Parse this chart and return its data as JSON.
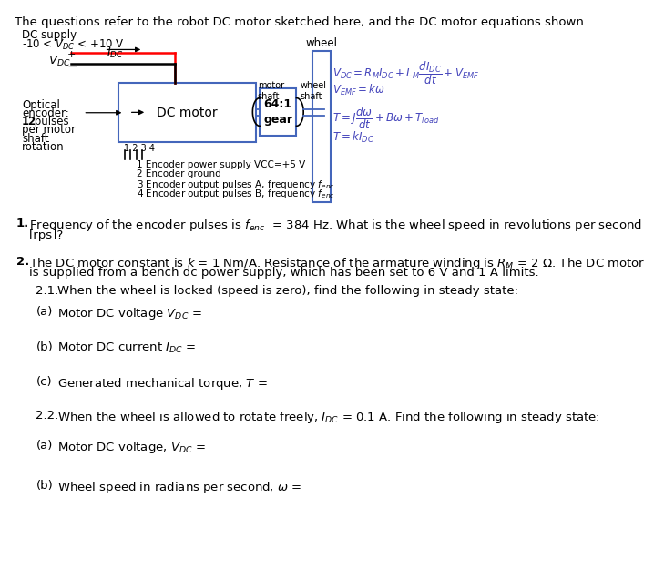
{
  "background_color": "#ffffff",
  "title": "The questions refer to the robot DC motor sketched here, and the DC motor equations shown.",
  "diagram": {
    "dc_supply": "DC supply",
    "dc_range": "-10 < $V_{DC}$ < +10 V",
    "vdc": "$V_{DC}$",
    "idc": "$I_{DC}$",
    "plus": "+",
    "minus": "−",
    "motor_label": "DC motor",
    "gear_label": "64:1\ngear",
    "motor_shaft": "motor\nshaft",
    "wheel_shaft": "wheel\nshaft",
    "wheel_label": "wheel",
    "optical_line1": "Optical",
    "optical_line2": "encoder:",
    "optical_line3_bold": "12",
    "optical_line3_rest": " pulses",
    "optical_line4": "per motor",
    "optical_line5": "shaft",
    "optical_line6": "rotation",
    "enc_pins": "1 2 3 4",
    "enc_note1": "1 Encoder power supply VCC=+5 V",
    "enc_note2": "2 Encoder ground",
    "enc_note3": "3 Encoder output pulses A, frequency $f_{enc}$",
    "enc_note4": "4 Encoder output pulses B, frequency $f_{enc}$"
  },
  "eq1": "$V_{DC} = R_M I_{DC} + L_M \\dfrac{dI_{DC}}{dt} + V_{EMF}$",
  "eq2": "$V_{EMF} = k\\omega$",
  "eq3": "$T = J\\dfrac{d\\omega}{dt} + B\\omega + T_{load}$",
  "eq4": "$T = kI_{DC}$",
  "q1_num": "1.",
  "q1_text1": "Frequency of the encoder pulses is $f_{enc}$  = 384 Hz. What is the wheel speed in revolutions per second",
  "q1_text2": "[rps]?",
  "q2_num": "2.",
  "q2_text1": "The DC motor constant is $k$ = 1 Nm/A. Resistance of the armature winding is $R_M$ = 2 Ω. The DC motor",
  "q2_text2": "is supplied from a bench dc power supply, which has been set to 6 V and 1 A limits.",
  "q21_label": "2.1.",
  "q21_text": "When the wheel is locked (speed is zero), find the following in steady state:",
  "qa_label": "(a)",
  "qa1_text": "Motor DC voltage $V_{DC}$ =",
  "qb_label": "(b)",
  "qb1_text": "Motor DC current $I_{DC}$ =",
  "qc_label": "(c)",
  "qc1_text": "Generated mechanical torque, $T$ =",
  "q22_label": "2.2.",
  "q22_text": "When the wheel is allowed to rotate freely, $I_{DC}$ = 0.1 A. Find the following in steady state:",
  "qa2_text": "Motor DC voltage, $V_{DC}$ =",
  "qb2_text": "Wheel speed in radians per second, $\\omega$ ="
}
